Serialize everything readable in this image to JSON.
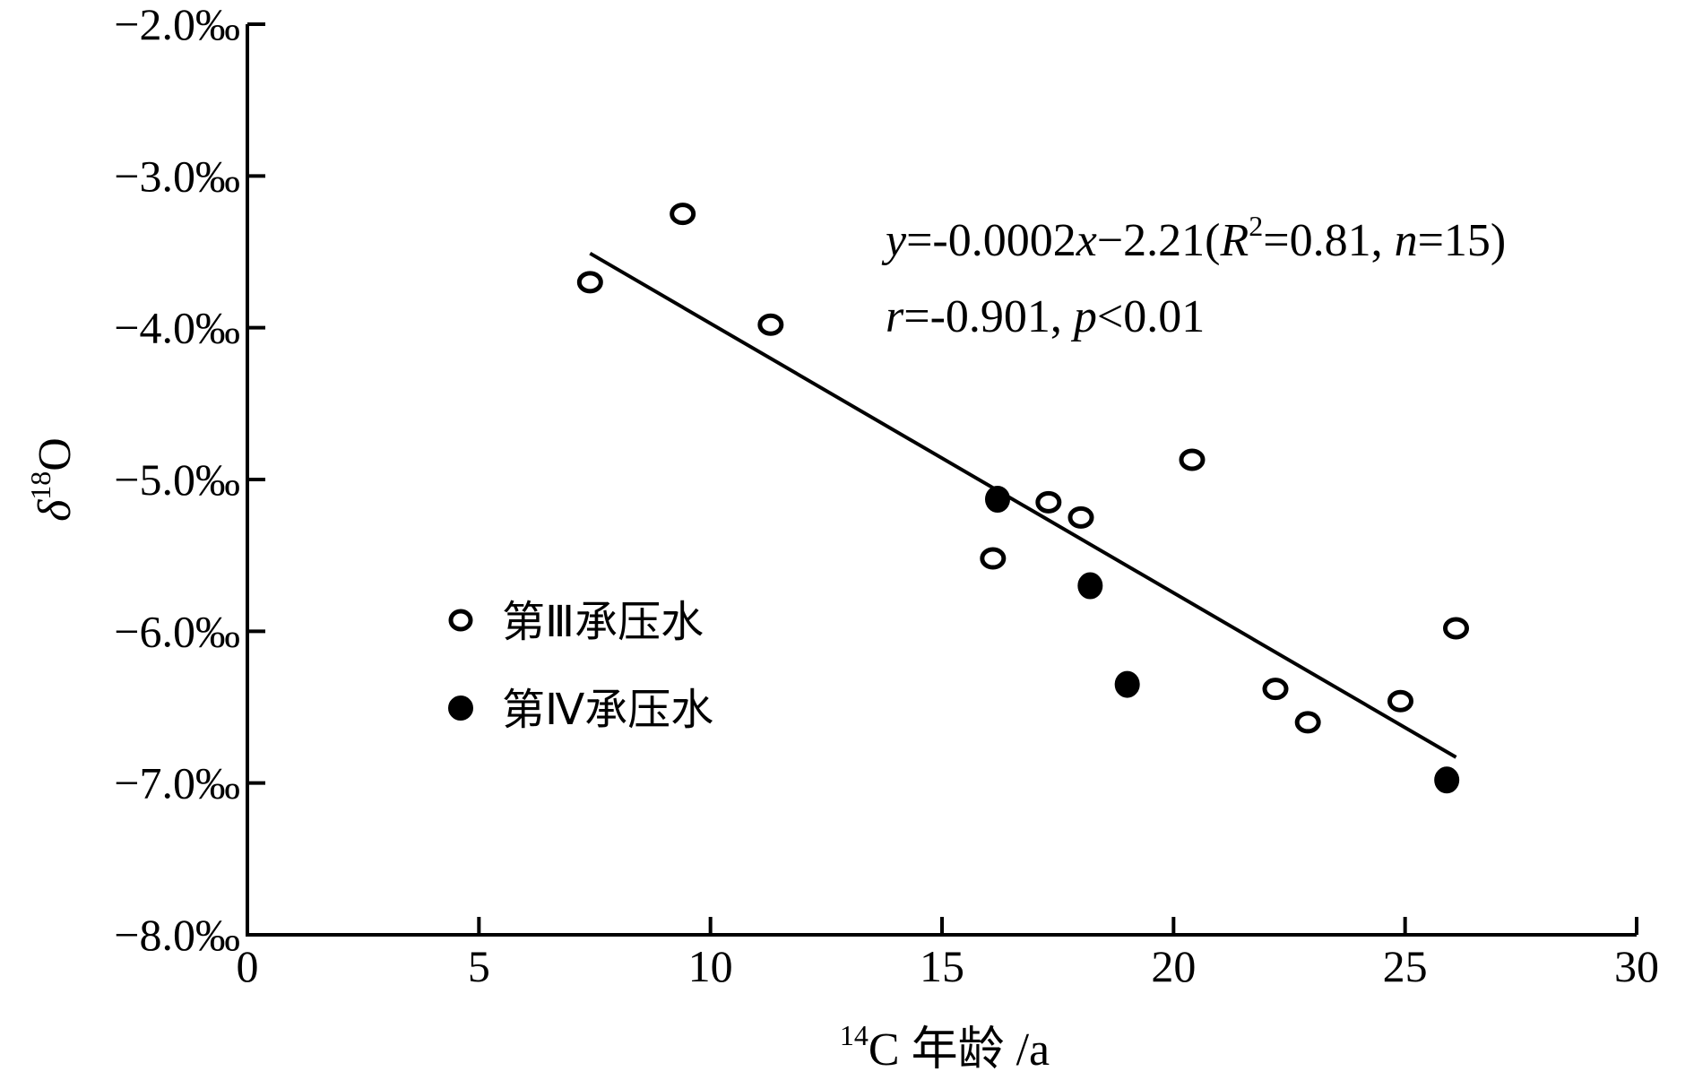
{
  "chart_data": {
    "type": "scatter",
    "xlabel_sup": "14",
    "xlabel": "C 年龄 /a",
    "ylabel_main": "δ",
    "ylabel_sup": "18",
    "ylabel_tail": "O",
    "xlim": [
      0,
      30
    ],
    "ylim": [
      -8.0,
      -2.0
    ],
    "x_ticks": [
      0,
      5,
      10,
      15,
      20,
      25,
      30
    ],
    "x_tick_labels": [
      "0",
      "5",
      "10",
      "15",
      "20",
      "25",
      "30"
    ],
    "y_ticks": [
      -2.0,
      -3.0,
      -4.0,
      -5.0,
      -6.0,
      -7.0,
      -8.0
    ],
    "y_tick_labels": [
      "−2.0‰",
      "−3.0‰",
      "−4.0‰",
      "−5.0‰",
      "−6.0‰",
      "−7.0‰",
      "−8.0‰"
    ],
    "grid": false,
    "legend_position": "left",
    "series": [
      {
        "name": "第Ⅲ承压水",
        "marker": "open-circle",
        "points": [
          {
            "x": 7.4,
            "y": -3.7
          },
          {
            "x": 9.4,
            "y": -3.25
          },
          {
            "x": 11.3,
            "y": -3.98
          },
          {
            "x": 16.1,
            "y": -5.52
          },
          {
            "x": 17.3,
            "y": -5.15
          },
          {
            "x": 18.0,
            "y": -5.25
          },
          {
            "x": 20.4,
            "y": -4.87
          },
          {
            "x": 22.2,
            "y": -6.38
          },
          {
            "x": 22.9,
            "y": -6.6
          },
          {
            "x": 24.9,
            "y": -6.46
          },
          {
            "x": 26.1,
            "y": -5.98
          }
        ]
      },
      {
        "name": "第Ⅳ承压水",
        "marker": "filled-circle",
        "points": [
          {
            "x": 16.2,
            "y": -5.13
          },
          {
            "x": 18.2,
            "y": -5.7
          },
          {
            "x": 19.0,
            "y": -6.35
          },
          {
            "x": 25.9,
            "y": -6.98
          }
        ]
      }
    ],
    "fit_line": {
      "x_start": 7.4,
      "y_start": -3.51,
      "x_end": 26.1,
      "y_end": -6.83
    },
    "annotations": {
      "line1": {
        "y_var": "y",
        "eq_a": "=-0.0002",
        "x_var": "x",
        "eq_b": "−2.21(",
        "r_var": "R",
        "r_sup": "2",
        "eq_c": "=0.81, ",
        "n_var": "n",
        "eq_d": "=15)"
      },
      "line2": {
        "r_var": "r",
        "eq_a": "=-0.901, ",
        "p_var": "p",
        "eq_b": "<0.01"
      }
    },
    "colors": {
      "axis": "#000000",
      "marker": "#000000",
      "background": "#ffffff"
    }
  }
}
